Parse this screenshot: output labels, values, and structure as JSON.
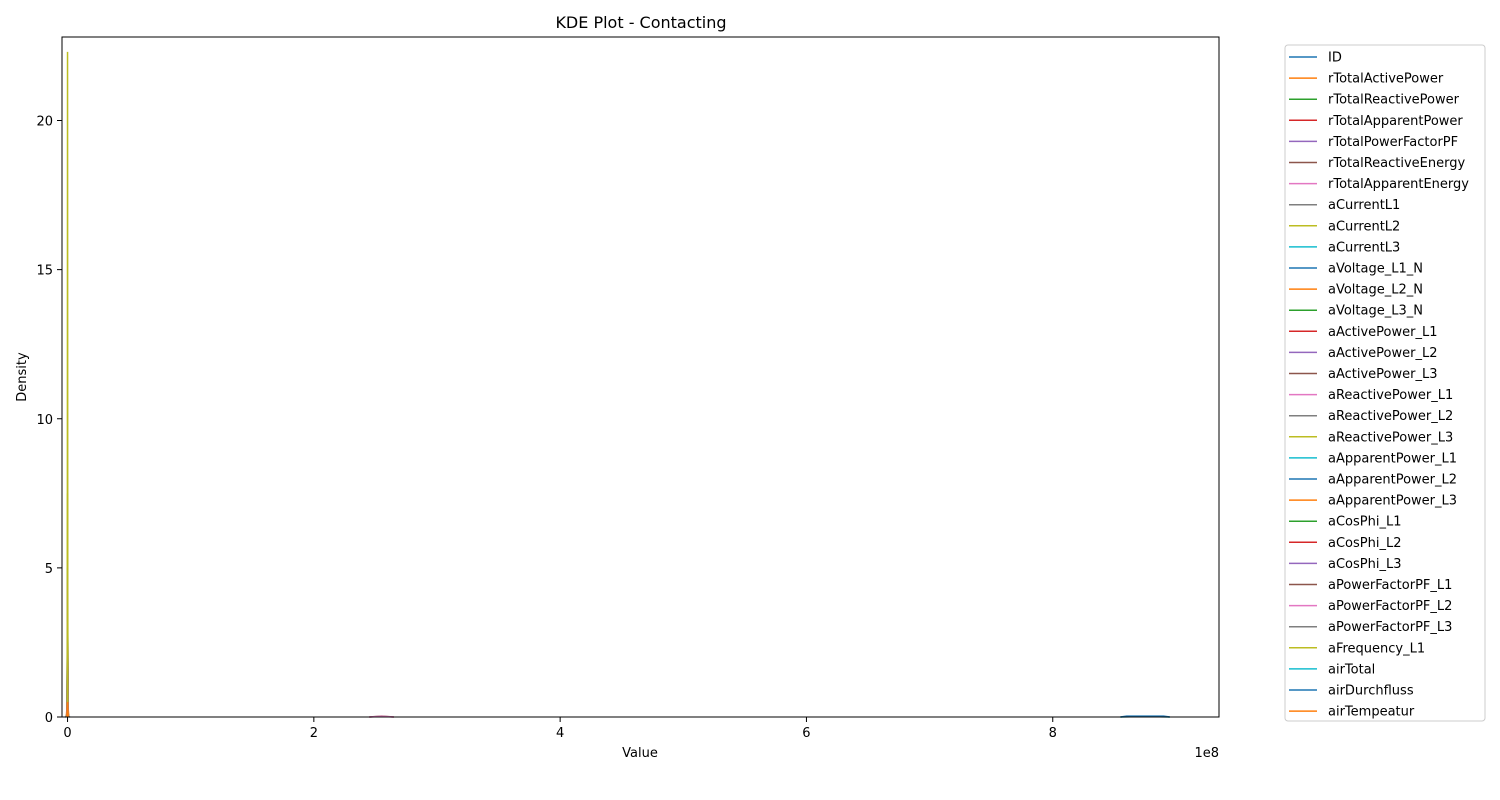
{
  "chart_data": {
    "type": "line",
    "title": "KDE Plot - Contacting",
    "xlabel": "Value",
    "ylabel": "Density",
    "x_offset_label": "1e8",
    "xlim": [
      -0.045,
      9.35
    ],
    "ylim": [
      0,
      22.8
    ],
    "x_ticks": [
      0,
      2,
      4,
      6,
      8
    ],
    "y_ticks": [
      0,
      5,
      10,
      15,
      20
    ],
    "x_tick_labels": [
      "0",
      "2",
      "4",
      "6",
      "8"
    ],
    "y_tick_labels": [
      "0",
      "5",
      "10",
      "15",
      "20"
    ],
    "grid": false,
    "legend_position": "outside-right",
    "series": [
      {
        "name": "ID",
        "color": "#1f77b4",
        "points": [
          [
            -0.02,
            0
          ],
          [
            0.0,
            0.02
          ],
          [
            0.02,
            0
          ]
        ]
      },
      {
        "name": "rTotalActivePower",
        "color": "#ff7f0e",
        "points": [
          [
            -0.01,
            0
          ],
          [
            0.0,
            0.6
          ],
          [
            0.01,
            0
          ]
        ]
      },
      {
        "name": "rTotalReactivePower",
        "color": "#2ca02c",
        "points": [
          [
            -0.01,
            0
          ],
          [
            0.0,
            0.3
          ],
          [
            0.01,
            0
          ]
        ]
      },
      {
        "name": "rTotalApparentPower",
        "color": "#d62728",
        "points": [
          [
            -0.01,
            0
          ],
          [
            0.0,
            0.2
          ],
          [
            0.01,
            0
          ]
        ]
      },
      {
        "name": "rTotalPowerFactorPF",
        "color": "#9467bd",
        "points": [
          [
            -0.005,
            0
          ],
          [
            0.0,
            4.0
          ],
          [
            0.005,
            0
          ]
        ]
      },
      {
        "name": "rTotalReactiveEnergy",
        "color": "#8c564b",
        "points": [
          [
            2.45,
            0
          ],
          [
            2.55,
            0.03
          ],
          [
            2.65,
            0
          ]
        ]
      },
      {
        "name": "rTotalApparentEnergy",
        "color": "#e377c2",
        "points": [
          [
            2.45,
            0
          ],
          [
            2.55,
            0.02
          ],
          [
            2.65,
            0
          ]
        ]
      },
      {
        "name": "aCurrentL1",
        "color": "#7f7f7f",
        "points": [
          [
            -0.005,
            0
          ],
          [
            0.0,
            2.0
          ],
          [
            0.005,
            0
          ]
        ]
      },
      {
        "name": "aCurrentL2",
        "color": "#bcbd22",
        "points": [
          [
            -0.004,
            0
          ],
          [
            0.0,
            7.5
          ],
          [
            0.004,
            0
          ]
        ]
      },
      {
        "name": "aCurrentL3",
        "color": "#17becf",
        "points": [
          [
            -0.005,
            0
          ],
          [
            0.0,
            3.0
          ],
          [
            0.005,
            0
          ]
        ]
      },
      {
        "name": "aVoltage_L1_N",
        "color": "#1f77b4",
        "points": [
          [
            -0.005,
            0
          ],
          [
            0.0,
            1.0
          ],
          [
            0.005,
            0
          ]
        ]
      },
      {
        "name": "aVoltage_L2_N",
        "color": "#ff7f0e",
        "points": [
          [
            -0.005,
            0
          ],
          [
            0.0,
            1.2
          ],
          [
            0.005,
            0
          ]
        ]
      },
      {
        "name": "aVoltage_L3_N",
        "color": "#2ca02c",
        "points": [
          [
            -0.005,
            0
          ],
          [
            0.0,
            0.9
          ],
          [
            0.005,
            0
          ]
        ]
      },
      {
        "name": "aActivePower_L1",
        "color": "#d62728",
        "points": [
          [
            -0.01,
            0
          ],
          [
            0.0,
            0.2
          ],
          [
            0.01,
            0
          ]
        ]
      },
      {
        "name": "aActivePower_L2",
        "color": "#9467bd",
        "points": [
          [
            -0.01,
            0
          ],
          [
            0.0,
            0.2
          ],
          [
            0.01,
            0
          ]
        ]
      },
      {
        "name": "aActivePower_L3",
        "color": "#8c564b",
        "points": [
          [
            -0.01,
            0
          ],
          [
            0.0,
            0.2
          ],
          [
            0.01,
            0
          ]
        ]
      },
      {
        "name": "aReactivePower_L1",
        "color": "#e377c2",
        "points": [
          [
            -0.01,
            0
          ],
          [
            0.0,
            0.15
          ],
          [
            0.01,
            0
          ]
        ]
      },
      {
        "name": "aReactivePower_L2",
        "color": "#7f7f7f",
        "points": [
          [
            -0.01,
            0
          ],
          [
            0.0,
            0.15
          ],
          [
            0.01,
            0
          ]
        ]
      },
      {
        "name": "aReactivePower_L3",
        "color": "#bcbd22",
        "points": [
          [
            -0.01,
            0
          ],
          [
            0.0,
            0.15
          ],
          [
            0.01,
            0
          ]
        ]
      },
      {
        "name": "aApparentPower_L1",
        "color": "#17becf",
        "points": [
          [
            -0.01,
            0
          ],
          [
            0.0,
            0.15
          ],
          [
            0.01,
            0
          ]
        ]
      },
      {
        "name": "aApparentPower_L2",
        "color": "#1f77b4",
        "points": [
          [
            -0.01,
            0
          ],
          [
            0.0,
            0.15
          ],
          [
            0.01,
            0
          ]
        ]
      },
      {
        "name": "aApparentPower_L3",
        "color": "#ff7f0e",
        "points": [
          [
            -0.01,
            0
          ],
          [
            0.0,
            0.15
          ],
          [
            0.01,
            0
          ]
        ]
      },
      {
        "name": "aCosPhi_L1",
        "color": "#2ca02c",
        "points": [
          [
            -0.004,
            0
          ],
          [
            0.0,
            5.0
          ],
          [
            0.004,
            0
          ]
        ]
      },
      {
        "name": "aCosPhi_L2",
        "color": "#d62728",
        "points": [
          [
            -0.004,
            0
          ],
          [
            0.0,
            4.5
          ],
          [
            0.004,
            0
          ]
        ]
      },
      {
        "name": "aCosPhi_L3",
        "color": "#9467bd",
        "points": [
          [
            -0.004,
            0
          ],
          [
            0.0,
            4.8
          ],
          [
            0.004,
            0
          ]
        ]
      },
      {
        "name": "aPowerFactorPF_L1",
        "color": "#8c564b",
        "points": [
          [
            -0.004,
            0
          ],
          [
            0.0,
            3.5
          ],
          [
            0.004,
            0
          ]
        ]
      },
      {
        "name": "aPowerFactorPF_L2",
        "color": "#e377c2",
        "points": [
          [
            -0.004,
            0
          ],
          [
            0.0,
            3.2
          ],
          [
            0.004,
            0
          ]
        ]
      },
      {
        "name": "aPowerFactorPF_L3",
        "color": "#7f7f7f",
        "points": [
          [
            -0.004,
            0
          ],
          [
            0.0,
            3.0
          ],
          [
            0.004,
            0
          ]
        ]
      },
      {
        "name": "aFrequency_L1",
        "color": "#bcbd22",
        "points": [
          [
            -0.002,
            0
          ],
          [
            0.0,
            22.3
          ],
          [
            0.002,
            0
          ]
        ]
      },
      {
        "name": "airTotal",
        "color": "#17becf",
        "points": [
          [
            8.55,
            0
          ],
          [
            8.75,
            0.02
          ],
          [
            8.95,
            0
          ]
        ]
      },
      {
        "name": "airDurchfluss",
        "color": "#1f77b4",
        "points": [
          [
            8.55,
            0
          ],
          [
            8.6,
            0.03
          ],
          [
            8.9,
            0.03
          ],
          [
            8.95,
            0
          ]
        ]
      },
      {
        "name": "airTempeatur",
        "color": "#ff7f0e",
        "points": [
          [
            -0.005,
            0
          ],
          [
            0.0,
            0.5
          ],
          [
            0.005,
            0
          ]
        ]
      }
    ]
  }
}
